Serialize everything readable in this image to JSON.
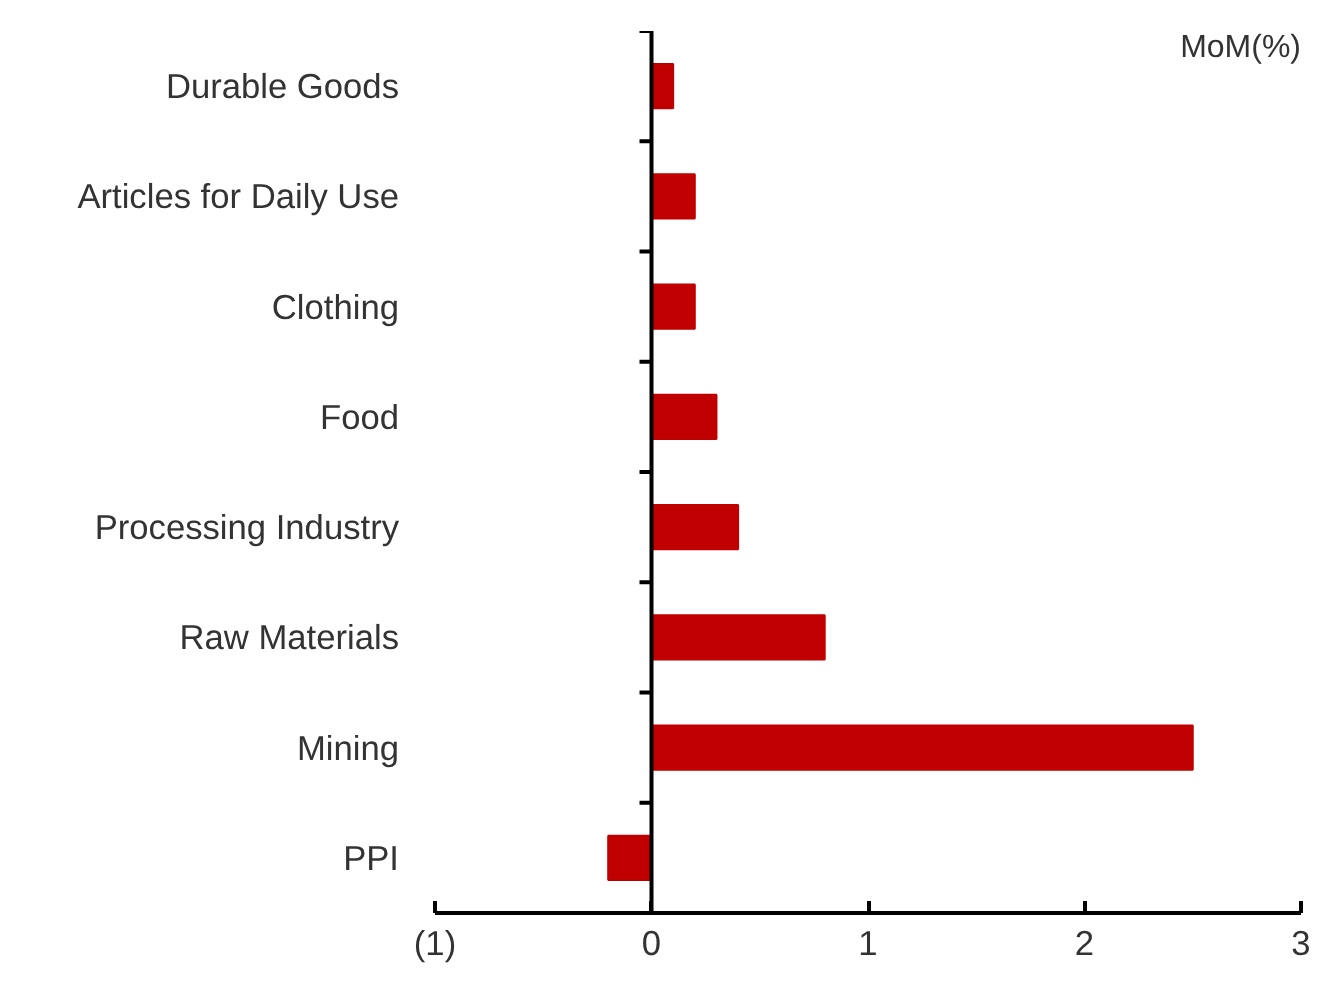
{
  "chart_data": {
    "type": "bar",
    "orientation": "horizontal",
    "categories": [
      "Durable Goods",
      "Articles for Daily Use",
      "Clothing",
      "Food",
      "Processing Industry",
      "Raw Materials",
      "Mining",
      "PPI"
    ],
    "values": [
      0.1,
      0.2,
      0.2,
      0.3,
      0.4,
      0.8,
      2.5,
      -0.2
    ],
    "color": "#c00000",
    "xlim": [
      -1,
      3
    ],
    "xticks": [
      {
        "value": -1,
        "label": "(1)"
      },
      0,
      1,
      2,
      3
    ],
    "annotations": [
      "MoM(%)"
    ]
  }
}
